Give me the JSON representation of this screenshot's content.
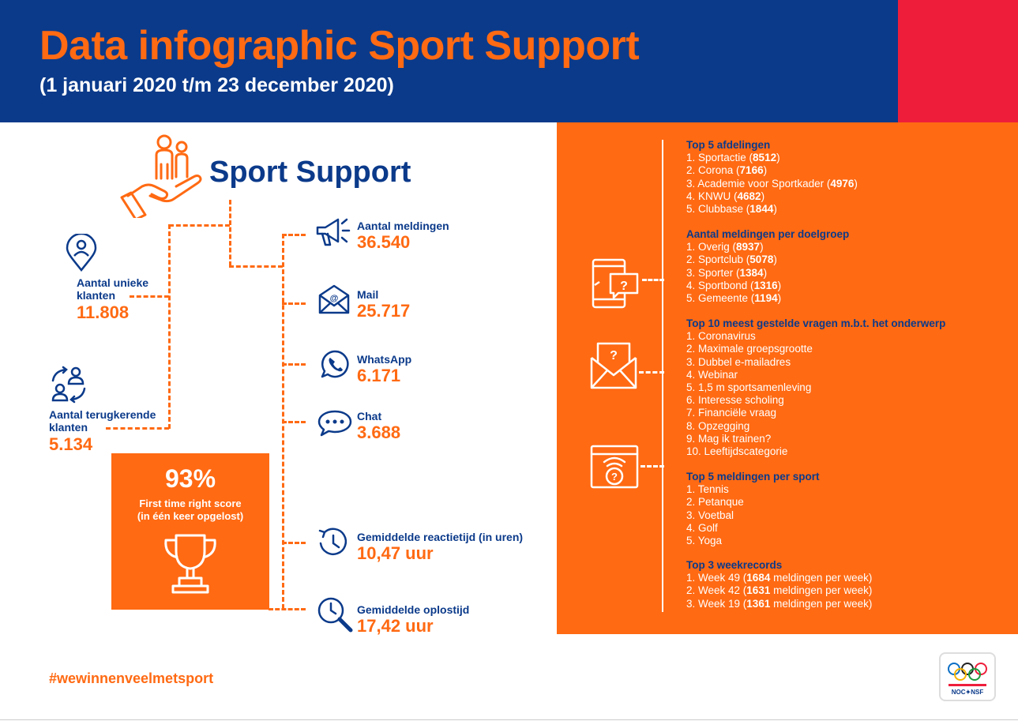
{
  "header": {
    "title": "Data infographic Sport Support",
    "subtitle": "(1 januari 2020 t/m 23 december 2020)"
  },
  "sport_support": {
    "title": "Sport Support"
  },
  "stats_left": [
    {
      "label_1": "Aantal unieke",
      "label_2": "klanten",
      "value": "11.808"
    },
    {
      "label_1": "Aantal terugkerende",
      "label_2": "klanten",
      "value": "5.134"
    }
  ],
  "ftr": {
    "percent": "93%",
    "line_1": "First time right score",
    "line_2": "(in één keer opgelost)"
  },
  "stats_mid": [
    {
      "label": "Aantal meldingen",
      "value": "36.540",
      "icon": "megaphone-icon"
    },
    {
      "label": "Mail",
      "value": "25.717",
      "icon": "mail-icon"
    },
    {
      "label": "WhatsApp",
      "value": "6.171",
      "icon": "whatsapp-icon"
    },
    {
      "label": "Chat",
      "value": "3.688",
      "icon": "chat-icon"
    },
    {
      "label": "Gemiddelde reactietijd (in uren)",
      "value": "10,47 uur",
      "icon": "clock-icon"
    },
    {
      "label": "Gemiddelde oplostijd",
      "value": "17,42 uur",
      "icon": "magnifier-clock-icon"
    }
  ],
  "panel": {
    "sections": [
      {
        "title": "Top 5 afdelingen",
        "items": [
          {
            "text": "1. Sportactie (",
            "bold": "8512",
            "after": ")"
          },
          {
            "text": "2. Corona (",
            "bold": "7166",
            "after": ")"
          },
          {
            "text": "3. Academie voor Sportkader (",
            "bold": "4976",
            "after": ")"
          },
          {
            "text": "4. KNWU (",
            "bold": "4682",
            "after": ")"
          },
          {
            "text": "5. Clubbase (",
            "bold": "1844",
            "after": ")"
          }
        ]
      },
      {
        "title": "Aantal meldingen per doelgroep",
        "items": [
          {
            "text": "1. Overig (",
            "bold": "8937",
            "after": ")"
          },
          {
            "text": "2. Sportclub (",
            "bold": "5078",
            "after": ")"
          },
          {
            "text": "3. Sporter (",
            "bold": "1384",
            "after": ")"
          },
          {
            "text": "4. Sportbond (",
            "bold": "1316",
            "after": ")"
          },
          {
            "text": "5. Gemeente (",
            "bold": "1194",
            "after": ")"
          }
        ]
      },
      {
        "title": "Top 10 meest gestelde vragen m.b.t. het onderwerp",
        "items": [
          {
            "text": "1. Coronavirus"
          },
          {
            "text": "2. Maximale groepsgrootte"
          },
          {
            "text": "3. Dubbel e-mailadres"
          },
          {
            "text": "4. Webinar"
          },
          {
            "text": "5. 1,5 m sportsamenleving"
          },
          {
            "text": "6. Interesse scholing"
          },
          {
            "text": "7. Financiële vraag"
          },
          {
            "text": "8. Opzegging"
          },
          {
            "text": "9. Mag ik trainen?"
          },
          {
            "text": "10. Leeftijdscategorie"
          }
        ]
      },
      {
        "title": "Top 5 meldingen per sport",
        "items": [
          {
            "text": "1. Tennis"
          },
          {
            "text": "2. Petanque"
          },
          {
            "text": "3. Voetbal"
          },
          {
            "text": "4. Golf"
          },
          {
            "text": "5. Yoga"
          }
        ]
      },
      {
        "title": "Top 3 weekrecords",
        "items": [
          {
            "text": "1. Week 49 (",
            "bold": "1684",
            "after": " meldingen per week)"
          },
          {
            "text": "2. Week 42 (",
            "bold": "1631",
            "after": " meldingen per week)"
          },
          {
            "text": "3. Week 19 (",
            "bold": "1361",
            "after": " meldingen per week)"
          }
        ]
      }
    ]
  },
  "footer": {
    "hashtag": "#wewinnenveelmetsport",
    "logo_text": "NOC✦NSF"
  },
  "colors": {
    "navy": "#0b3a8a",
    "orange": "#ff6a13",
    "red": "#ee1e3b"
  }
}
